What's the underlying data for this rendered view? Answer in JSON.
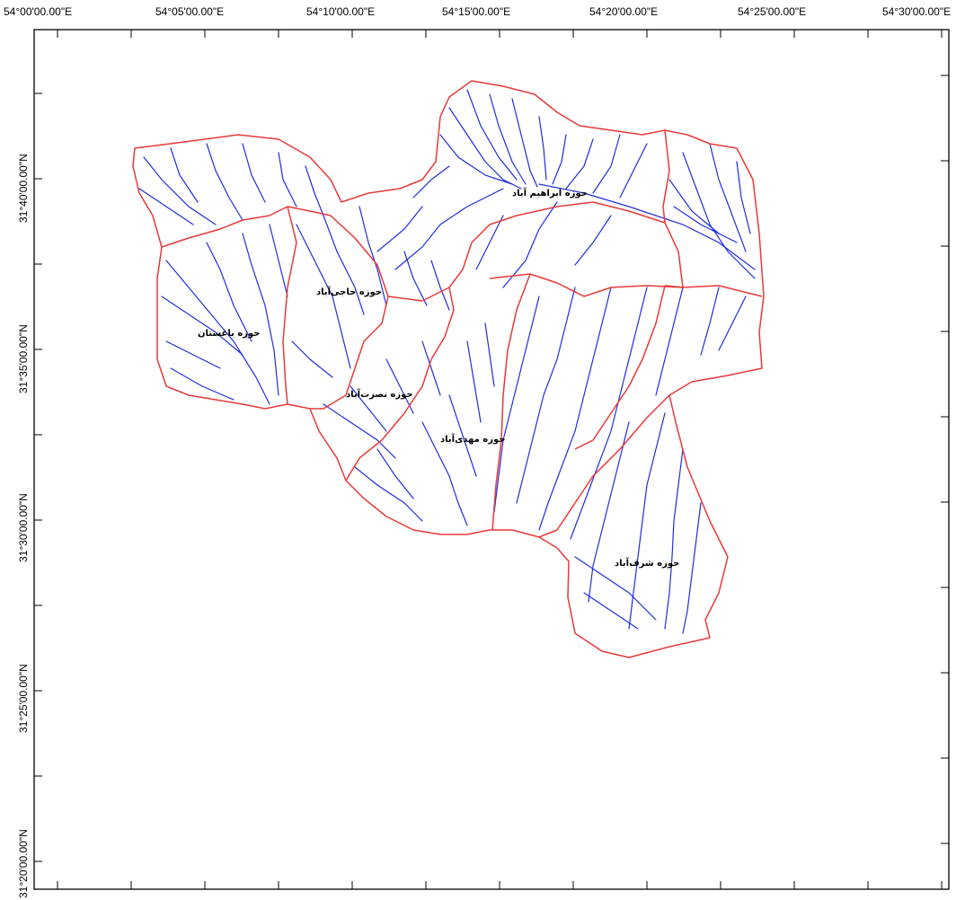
{
  "map": {
    "top_axis_labels": [
      "54°00'00.00\"E",
      "54°05'00.00\"E",
      "54°10'00.00\"E",
      "54°15'00.00\"E",
      "54°20'00.00\"E",
      "54°25'00.00\"E",
      "54°30'00.00\"E"
    ],
    "left_axis_labels": [
      "31°40'00.00\"N",
      "31°35'00.00\"N",
      "31°30'00.00\"N",
      "31°25'00.00\"N",
      "31°20'00.00\"N"
    ],
    "basin_labels": [
      "حوزه ابراهیم آباد",
      "حوزه حاجی‌آباد",
      "حوزه باغستان",
      "حوزه نصرت‌آباد",
      "حوزه مهدی‌آباد",
      "حوزه شرف‌آباد"
    ],
    "colors": {
      "boundary": "#e8393a",
      "streams": "#1f2de0",
      "frame": "#000000"
    }
  }
}
